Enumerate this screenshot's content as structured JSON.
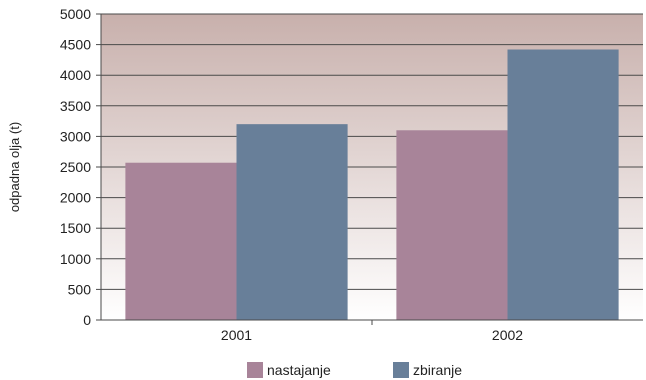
{
  "colors": {
    "background_top": "#c8b0ac",
    "background_bottom": "#ffffff",
    "gridline": "#4a4a4a",
    "axis": "#4a4a4a"
  },
  "chart_data": {
    "type": "bar",
    "title": "",
    "xlabel": "",
    "ylabel": "odpadna olja (t)",
    "categories": [
      "2001",
      "2002"
    ],
    "ylim": [
      0,
      5000
    ],
    "yticks": [
      0,
      500,
      1000,
      1500,
      2000,
      2500,
      3000,
      3500,
      4000,
      4500,
      5000
    ],
    "grid": true,
    "legend_position": "bottom",
    "series": [
      {
        "name": "nastajanje",
        "color": "#a88499",
        "values": [
          2570,
          3100
        ]
      },
      {
        "name": "zbiranje",
        "color": "#687f99",
        "values": [
          3200,
          4420
        ]
      }
    ]
  }
}
